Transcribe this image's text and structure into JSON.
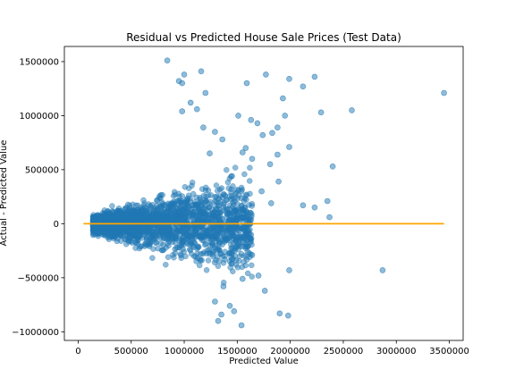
{
  "chart_data": {
    "type": "scatter",
    "title": "Residual vs Predicted House Sale Prices (Test Data)",
    "xlabel": "Predicted Value",
    "ylabel": "Actual - Predicted Value",
    "xlim": [
      -130000,
      3630000
    ],
    "ylim": [
      -1080000,
      1640000
    ],
    "xticks": [
      0,
      500000,
      1000000,
      1500000,
      2000000,
      2500000,
      3000000,
      3500000
    ],
    "xtick_labels": [
      "0",
      "500000",
      "1000000",
      "1500000",
      "2000000",
      "2500000",
      "3000000",
      "3500000"
    ],
    "yticks": [
      -1000000,
      -500000,
      0,
      500000,
      1000000,
      1500000
    ],
    "ytick_labels": [
      "−1000000",
      "−500000",
      "0",
      "500000",
      "1000000",
      "1500000"
    ],
    "grid": false,
    "legend": "none",
    "colors": {
      "points": "#1f77b4",
      "zero_line": "#ffa500"
    },
    "zero_line": {
      "x": [
        50000,
        3450000
      ],
      "y": [
        0,
        0
      ]
    },
    "series": [
      {
        "x": [
          840000,
          1160000,
          1000000,
          950000,
          980000,
          1200000,
          1590000,
          1770000,
          1990000,
          2120000,
          2230000,
          3450000,
          1930000,
          1120000,
          980000,
          1060000,
          1510000,
          2580000,
          2290000,
          1630000,
          1690000,
          1950000,
          1830000,
          1740000,
          1880000,
          1180000,
          1290000,
          1360000,
          1990000,
          1580000,
          1240000,
          1880000,
          2400000,
          2350000,
          1640000,
          1550000,
          1810000,
          1890000,
          1450000,
          1730000,
          2370000,
          1820000,
          2120000,
          2230000,
          2870000,
          1990000,
          1900000,
          1980000,
          1760000,
          1700000,
          1640000,
          1450000,
          1550000,
          1370000,
          1290000,
          1350000,
          1470000,
          1540000,
          1430000,
          1320000
        ],
        "y": [
          1510000,
          1410000,
          1380000,
          1320000,
          1300000,
          1210000,
          1300000,
          1380000,
          1340000,
          1270000,
          1360000,
          1210000,
          1160000,
          1060000,
          1040000,
          1120000,
          1000000,
          1050000,
          1030000,
          960000,
          930000,
          1000000,
          840000,
          820000,
          890000,
          890000,
          850000,
          780000,
          710000,
          700000,
          650000,
          640000,
          530000,
          210000,
          600000,
          660000,
          550000,
          390000,
          440000,
          300000,
          60000,
          190000,
          170000,
          150000,
          -430000,
          -430000,
          -830000,
          -850000,
          -620000,
          -480000,
          -290000,
          -330000,
          -510000,
          -580000,
          -720000,
          -840000,
          -810000,
          -940000,
          -760000,
          -900000
        ]
      }
    ]
  }
}
